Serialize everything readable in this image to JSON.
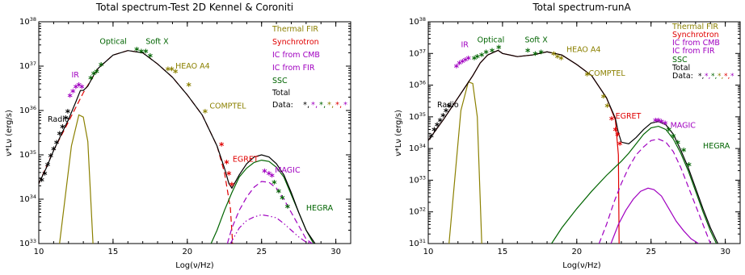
{
  "chart_data": [
    {
      "type": "line",
      "title": "Total spectrum-Test 2D Kennel & Coroniti",
      "xlabel": "Log(ν/Hz)",
      "ylabel": "ν*Lν (erg/s)",
      "xlim": [
        10,
        31
      ],
      "ylim": [
        33,
        38
      ],
      "log_y": true,
      "x_ticks": [
        10,
        15,
        20,
        25,
        30
      ],
      "y_ticks": [
        33,
        34,
        35,
        36,
        37,
        38
      ],
      "legend": [
        "Thermal FIR",
        "Synchrotron",
        "IC from CMB",
        "IC from FIR",
        "SSC",
        "Total",
        "Data:"
      ],
      "legend_position": "top-right",
      "annotations": [
        {
          "text": "Radio",
          "x": 10.6,
          "y": 35.75,
          "color": "#000000"
        },
        {
          "text": "IR",
          "x": 12.2,
          "y": 36.75,
          "color": "#a000c0"
        },
        {
          "text": "Optical",
          "x": 14.1,
          "y": 37.5,
          "color": "#006400"
        },
        {
          "text": "Soft X",
          "x": 17.2,
          "y": 37.5,
          "color": "#006400"
        },
        {
          "text": "HEAO A4",
          "x": 19.2,
          "y": 36.95,
          "color": "#8b8000"
        },
        {
          "text": "COMPTEL",
          "x": 21.5,
          "y": 36.05,
          "color": "#8b8000"
        },
        {
          "text": "EGRET",
          "x": 23.05,
          "y": 34.85,
          "color": "#e00000"
        },
        {
          "text": "MAGIC",
          "x": 25.9,
          "y": 34.6,
          "color": "#a000c0"
        },
        {
          "text": "HEGRA",
          "x": 28.0,
          "y": 33.75,
          "color": "#006400"
        }
      ],
      "series": [
        {
          "name": "Thermal FIR",
          "color": "#8b8000",
          "style": "solid",
          "x": [
            11.4,
            12.2,
            12.7,
            13.0,
            13.3,
            13.65
          ],
          "y": [
            33.0,
            35.2,
            35.9,
            35.85,
            35.3,
            33.0
          ]
        },
        {
          "name": "Synchrotron",
          "color": "#e00000",
          "style": "dashed",
          "x": [
            10,
            11,
            12,
            13,
            14,
            15,
            16,
            17,
            18,
            19,
            20,
            21,
            22,
            22.5,
            22.9,
            23.05
          ],
          "y": [
            34.35,
            35.1,
            35.75,
            36.4,
            36.95,
            37.25,
            37.35,
            37.3,
            37.05,
            36.75,
            36.35,
            35.9,
            35.2,
            34.6,
            33.8,
            33.0
          ]
        },
        {
          "name": "IC from CMB",
          "color": "#a000c0",
          "style": "dashed",
          "x": [
            22.7,
            23,
            23.5,
            24,
            24.5,
            25,
            25.5,
            26,
            26.5,
            27,
            27.5,
            28,
            28.4
          ],
          "y": [
            33.0,
            33.35,
            33.75,
            34.05,
            34.27,
            34.4,
            34.38,
            34.25,
            34.0,
            33.7,
            33.4,
            33.1,
            33.0
          ]
        },
        {
          "name": "IC from FIR",
          "color": "#a000c0",
          "style": "dashdotdot",
          "x": [
            22.9,
            23.5,
            24,
            24.5,
            25,
            25.5,
            26,
            26.5,
            27,
            27.5,
            28,
            28.5
          ],
          "y": [
            33.0,
            33.35,
            33.52,
            33.6,
            33.65,
            33.62,
            33.58,
            33.45,
            33.3,
            33.15,
            33.03,
            33.0
          ]
        },
        {
          "name": "SSC",
          "color": "#006400",
          "style": "solid",
          "x": [
            21.6,
            22,
            22.5,
            23,
            23.5,
            24,
            24.5,
            25,
            25.5,
            26,
            26.5,
            27,
            27.5,
            28,
            28.5
          ],
          "y": [
            33.0,
            33.3,
            33.75,
            34.15,
            34.5,
            34.7,
            34.83,
            34.88,
            34.85,
            34.72,
            34.5,
            34.1,
            33.7,
            33.3,
            33.0
          ]
        },
        {
          "name": "Total",
          "color": "#000000",
          "style": "solid",
          "x": [
            10,
            10.5,
            11,
            11.5,
            12,
            12.5,
            12.8,
            13.0,
            13.3,
            13.7,
            14,
            15,
            16,
            17,
            18,
            19,
            20,
            21,
            22,
            22.5,
            22.8,
            23.0,
            23.5,
            24,
            24.5,
            25,
            25.5,
            26,
            26.5,
            27,
            27.5,
            28,
            28.6
          ],
          "y": [
            34.35,
            34.7,
            35.1,
            35.45,
            35.8,
            36.2,
            36.45,
            36.45,
            36.55,
            36.8,
            36.95,
            37.25,
            37.35,
            37.3,
            37.05,
            36.75,
            36.35,
            35.9,
            35.2,
            34.7,
            34.35,
            34.25,
            34.55,
            34.8,
            34.95,
            35.0,
            34.95,
            34.8,
            34.55,
            34.15,
            33.7,
            33.3,
            33.0
          ]
        }
      ],
      "data_points": [
        {
          "color": "#000000",
          "x": [
            10.2,
            10.4,
            10.6,
            10.8,
            11.0,
            11.2,
            11.4,
            11.6,
            11.8,
            11.95
          ],
          "y": [
            34.4,
            34.55,
            34.75,
            34.95,
            35.1,
            35.25,
            35.45,
            35.6,
            35.8,
            35.95
          ]
        },
        {
          "color": "#a000c0",
          "x": [
            12.1,
            12.3,
            12.5,
            12.7,
            12.9
          ],
          "y": [
            36.3,
            36.4,
            36.5,
            36.55,
            36.5
          ]
        },
        {
          "color": "#006400",
          "x": [
            13.5,
            13.7,
            13.9,
            14.2,
            16.6,
            16.9,
            17.2,
            17.5
          ],
          "y": [
            36.7,
            36.8,
            36.85,
            37.0,
            37.35,
            37.3,
            37.3,
            37.2
          ]
        },
        {
          "color": "#8b8000",
          "x": [
            18.7,
            18.95,
            19.2,
            20.1,
            21.2
          ],
          "y": [
            36.9,
            36.9,
            36.85,
            36.55,
            35.95
          ]
        },
        {
          "color": "#e00000",
          "x": [
            22.3,
            22.65,
            22.8,
            23.0
          ],
          "y": [
            35.2,
            34.8,
            34.55,
            34.3
          ]
        },
        {
          "color": "#a000c0",
          "x": [
            25.2,
            25.5,
            25.7
          ],
          "y": [
            34.6,
            34.55,
            34.5
          ]
        },
        {
          "color": "#006400",
          "x": [
            25.85,
            26.15,
            26.4,
            26.75
          ],
          "y": [
            34.35,
            34.15,
            34.0,
            33.8
          ]
        }
      ]
    },
    {
      "type": "line",
      "title": "Total spectrum-runA",
      "xlabel": "Log(ν/Hz)",
      "ylabel": "ν*Lν (erg/s)",
      "xlim": [
        10,
        31
      ],
      "ylim": [
        31,
        38
      ],
      "log_y": true,
      "x_ticks": [
        10,
        15,
        20,
        25,
        30
      ],
      "y_ticks": [
        31,
        32,
        33,
        34,
        35,
        36,
        37,
        38
      ],
      "legend": [
        "Thermal FIR",
        "Synchrotron",
        "IC from CMB",
        "IC from FIR",
        "SSC",
        "Total",
        "Data:"
      ],
      "legend_position": "top-right",
      "annotations": [
        {
          "text": "Radio",
          "x": 10.6,
          "y": 35.3,
          "color": "#000000"
        },
        {
          "text": "IR",
          "x": 12.2,
          "y": 37.2,
          "color": "#a000c0"
        },
        {
          "text": "Optical",
          "x": 13.3,
          "y": 37.35,
          "color": "#006400"
        },
        {
          "text": "Soft X",
          "x": 16.5,
          "y": 37.35,
          "color": "#006400"
        },
        {
          "text": "HEAO A4",
          "x": 19.3,
          "y": 37.05,
          "color": "#8b8000"
        },
        {
          "text": "COMPTEL",
          "x": 20.8,
          "y": 36.3,
          "color": "#8b8000"
        },
        {
          "text": "EGRET",
          "x": 22.6,
          "y": 34.95,
          "color": "#e00000"
        },
        {
          "text": "MAGIC",
          "x": 26.3,
          "y": 34.65,
          "color": "#a000c0"
        },
        {
          "text": "HEGRA",
          "x": 28.5,
          "y": 34.0,
          "color": "#006400"
        }
      ],
      "series": [
        {
          "name": "Thermal FIR",
          "color": "#8b8000",
          "style": "solid",
          "x": [
            11.4,
            12.2,
            12.7,
            13.0,
            13.3,
            13.6
          ],
          "y": [
            31.0,
            35.2,
            36.1,
            36.05,
            35.0,
            31.0
          ]
        },
        {
          "name": "Synchrotron",
          "color": "#e00000",
          "style": "solid",
          "x": [
            10,
            11,
            12,
            12.5,
            13.0,
            13.5,
            14,
            14.7,
            15,
            16,
            17,
            18,
            19,
            20,
            21,
            22,
            22.6,
            22.8,
            22.85
          ],
          "y": [
            34.25,
            34.9,
            35.6,
            35.95,
            36.3,
            36.7,
            36.95,
            37.1,
            37.0,
            36.9,
            36.95,
            37.05,
            36.95,
            36.65,
            36.3,
            35.6,
            34.9,
            33.8,
            31.0
          ]
        },
        {
          "name": "IC from CMB",
          "color": "#a000c0",
          "style": "dashed",
          "x": [
            21.5,
            22,
            22.5,
            23,
            23.5,
            24,
            24.5,
            25,
            25.5,
            26,
            26.5,
            27,
            27.5,
            28,
            28.5,
            29
          ],
          "y": [
            31.0,
            31.6,
            32.3,
            32.9,
            33.4,
            33.8,
            34.05,
            34.25,
            34.3,
            34.2,
            33.9,
            33.4,
            32.8,
            32.2,
            31.6,
            31.0
          ]
        },
        {
          "name": "IC from FIR",
          "color": "#a000c0",
          "style": "solid",
          "x": [
            22.3,
            22.8,
            23.3,
            23.8,
            24.3,
            24.8,
            25.2,
            25.7,
            26.2,
            26.7,
            27.2,
            27.7,
            28.2
          ],
          "y": [
            31.0,
            31.6,
            32.05,
            32.4,
            32.65,
            32.75,
            32.7,
            32.5,
            32.1,
            31.7,
            31.4,
            31.15,
            31.0
          ]
        },
        {
          "name": "SSC",
          "color": "#006400",
          "style": "solid",
          "x": [
            18.3,
            19,
            20,
            21,
            22,
            23,
            23.5,
            24,
            24.5,
            25,
            25.5,
            26,
            26.5,
            27,
            27.5,
            28,
            28.5,
            29,
            29.4
          ],
          "y": [
            31.0,
            31.5,
            32.1,
            32.65,
            33.15,
            33.6,
            33.85,
            34.15,
            34.45,
            34.65,
            34.7,
            34.6,
            34.3,
            33.85,
            33.3,
            32.65,
            32.0,
            31.4,
            31.0
          ]
        },
        {
          "name": "Total",
          "color": "#000000",
          "style": "solid",
          "x": [
            10,
            11,
            12,
            12.5,
            13.0,
            13.5,
            14,
            14.7,
            15,
            16,
            17,
            18,
            19,
            20,
            21,
            22,
            22.6,
            22.8,
            23.0,
            23.5,
            24,
            24.5,
            25,
            25.5,
            26,
            26.5,
            27,
            27.5,
            28,
            28.5,
            29,
            29.5
          ],
          "y": [
            34.25,
            34.9,
            35.6,
            35.95,
            36.3,
            36.7,
            36.95,
            37.1,
            37.0,
            36.9,
            36.95,
            37.05,
            36.95,
            36.65,
            36.3,
            35.6,
            34.95,
            34.5,
            34.2,
            34.15,
            34.35,
            34.6,
            34.8,
            34.85,
            34.75,
            34.45,
            33.95,
            33.4,
            32.75,
            32.1,
            31.5,
            31.0
          ]
        }
      ],
      "data_points": [
        {
          "color": "#000000",
          "x": [
            10.2,
            10.4,
            10.6,
            10.8,
            11.0,
            11.2,
            11.4
          ],
          "y": [
            34.35,
            34.55,
            34.7,
            34.85,
            35.0,
            35.15,
            35.3
          ]
        },
        {
          "color": "#a000c0",
          "x": [
            11.9,
            12.1,
            12.3,
            12.5,
            12.7
          ],
          "y": [
            36.55,
            36.65,
            36.7,
            36.75,
            36.8
          ]
        },
        {
          "color": "#006400",
          "x": [
            13.1,
            13.3,
            13.6,
            13.9,
            14.3,
            14.75,
            16.7,
            17.2,
            17.6
          ],
          "y": [
            36.8,
            36.85,
            36.9,
            37.0,
            37.05,
            37.15,
            37.05,
            36.95,
            37.0
          ]
        },
        {
          "color": "#8b8000",
          "x": [
            18.45,
            18.7,
            18.95,
            20.7,
            21.8,
            22.05
          ],
          "y": [
            36.95,
            36.85,
            36.8,
            36.3,
            35.6,
            35.3
          ]
        },
        {
          "color": "#e00000",
          "x": [
            22.35,
            22.6,
            22.75,
            22.9
          ],
          "y": [
            34.9,
            34.55,
            34.4,
            34.1
          ]
        },
        {
          "color": "#a000c0",
          "x": [
            25.3,
            25.5,
            25.7,
            25.95
          ],
          "y": [
            34.85,
            34.85,
            34.8,
            34.75
          ]
        },
        {
          "color": "#006400",
          "x": [
            26.2,
            26.5,
            26.8,
            27.2,
            27.55
          ],
          "y": [
            34.55,
            34.35,
            34.15,
            33.9,
            33.45
          ]
        }
      ]
    }
  ]
}
